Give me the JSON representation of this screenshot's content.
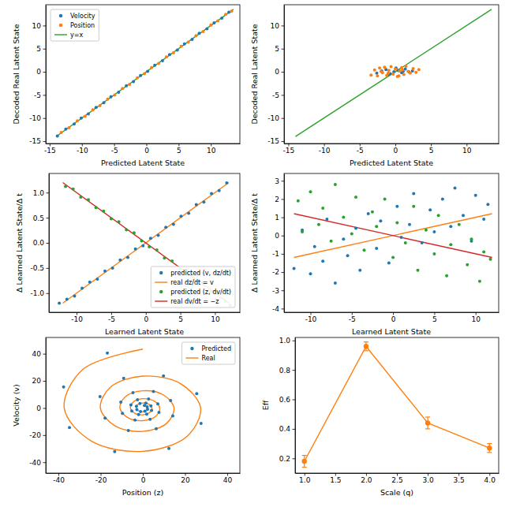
{
  "chart_data": [
    {
      "type": "scatter",
      "x_label": "Predicted Latent State",
      "y_label": "Decoded Real Latent State",
      "xlim": [
        -15.6,
        14.5
      ],
      "ylim": [
        -15.5,
        14.5
      ],
      "xticks": [
        -15,
        -10,
        -5,
        0,
        5,
        10
      ],
      "yticks": [
        -15,
        -10,
        -5,
        0,
        5,
        10
      ],
      "legend": "upper left",
      "series": [
        {
          "name": "Velocity",
          "color": "#1f77b4",
          "marker": "o",
          "x": [
            -13.8,
            -12.5,
            -11.2,
            -10.1,
            -9.0,
            -7.8,
            -6.6,
            -5.5,
            -4.3,
            -3.1,
            -2.0,
            -0.9,
            0.2,
            1.3,
            2.5,
            3.6,
            4.8,
            5.9,
            7.1,
            8.2,
            9.4,
            10.5,
            11.7,
            12.8
          ],
          "values": [
            -13.9,
            -12.4,
            -11.3,
            -10.0,
            -9.1,
            -7.7,
            -6.7,
            -5.4,
            -4.4,
            -3.0,
            -2.1,
            -0.8,
            0.1,
            1.4,
            2.4,
            3.7,
            4.7,
            6.0,
            7.0,
            8.3,
            9.3,
            10.6,
            11.6,
            12.9
          ]
        },
        {
          "name": "Position",
          "color": "#ff7f0e",
          "marker": "o",
          "x": [
            -13.2,
            -12.0,
            -10.7,
            -9.5,
            -8.3,
            -7.2,
            -6.0,
            -4.9,
            -3.7,
            -2.6,
            -1.4,
            -0.3,
            0.8,
            1.9,
            3.1,
            4.2,
            5.4,
            6.5,
            7.7,
            8.8,
            10.0,
            11.1,
            12.3,
            13.2
          ],
          "values": [
            -13.1,
            -12.1,
            -10.6,
            -9.6,
            -8.2,
            -7.3,
            -5.9,
            -5.0,
            -3.6,
            -2.7,
            -1.3,
            -0.4,
            0.9,
            1.8,
            3.2,
            4.1,
            5.5,
            6.4,
            7.8,
            8.7,
            10.1,
            11.0,
            12.4,
            13.1
          ]
        },
        {
          "name": "y=x",
          "type": "line",
          "color": "#2ca02c",
          "line_style": "solid",
          "x": [
            -14,
            13.5
          ],
          "values": [
            -14,
            13.5
          ]
        }
      ]
    },
    {
      "type": "scatter",
      "x_label": "Predicted Latent State",
      "y_label": "Decoded Real Latent State",
      "xlim": [
        -15.6,
        14.5
      ],
      "ylim": [
        -15.5,
        14.5
      ],
      "xticks": [
        -15,
        -10,
        -5,
        0,
        5,
        10
      ],
      "yticks": [
        -15,
        -10,
        -5,
        0,
        5,
        10
      ],
      "series": [
        {
          "color": "#1f77b4",
          "marker": "o",
          "x": [
            -2.6,
            -1.9,
            -1.3,
            -0.7,
            -0.2,
            0.4,
            0.9,
            1.4,
            1.9,
            2.4,
            -1.0,
            0.1,
            1.1
          ],
          "values": [
            -0.3,
            0.2,
            0.5,
            -0.4,
            0.0,
            0.3,
            -0.2,
            0.6,
            0.0,
            0.2,
            -0.6,
            0.8,
            0.1
          ]
        },
        {
          "color": "#ff7f0e",
          "marker": "o",
          "x": [
            -3.4,
            -2.9,
            -2.5,
            -2.2,
            -1.8,
            -1.5,
            -1.2,
            -0.9,
            -0.6,
            -0.3,
            0.0,
            0.3,
            0.6,
            0.9,
            1.2,
            1.5,
            1.8,
            2.1,
            2.5,
            2.9,
            3.3,
            -1.0,
            0.5,
            1.0,
            -2.0
          ],
          "values": [
            -0.7,
            0.4,
            -0.9,
            0.8,
            -0.2,
            1.0,
            -0.8,
            0.3,
            1.1,
            -0.5,
            0.6,
            -1.0,
            0.2,
            0.9,
            -0.6,
            1.2,
            0.1,
            -0.3,
            0.7,
            -0.1,
            0.5,
            -0.3,
            -0.9,
            0.4,
            0.1
          ]
        },
        {
          "type": "line",
          "color": "#2ca02c",
          "line_style": "solid",
          "x": [
            -14,
            13.5
          ],
          "values": [
            -14,
            13.5
          ]
        }
      ]
    },
    {
      "type": "scatter",
      "x_label": "Learned Latent State",
      "y_label": "Δ Learned Latent State/Δ t",
      "xlim": [
        -14,
        13.6
      ],
      "ylim": [
        -1.38,
        1.38
      ],
      "xticks": [
        -10,
        -5,
        0,
        5,
        10
      ],
      "yticks": [
        {
          "value": -1,
          "label": "-1.0"
        },
        -0.5,
        {
          "value": 0,
          "label": "0.0"
        },
        0.5,
        {
          "value": 1,
          "label": "1.0"
        }
      ],
      "legend": "lower right",
      "series": [
        {
          "name": "predicted (v, dz/dt)",
          "color": "#1f77b4",
          "marker": "o",
          "x": [
            -12.5,
            -11.4,
            -10.3,
            -9.2,
            -8.1,
            -7.0,
            -5.9,
            -4.8,
            -3.7,
            -2.6,
            -1.5,
            -0.4,
            0.7,
            1.8,
            2.9,
            4.0,
            5.1,
            6.2,
            7.3,
            8.4,
            9.5,
            10.6,
            11.7
          ],
          "values": [
            -1.2,
            -1.12,
            -1.06,
            -0.9,
            -0.78,
            -0.72,
            -0.56,
            -0.5,
            -0.34,
            -0.29,
            -0.12,
            -0.06,
            0.09,
            0.15,
            0.31,
            0.37,
            0.53,
            0.59,
            0.76,
            0.81,
            0.98,
            1.04,
            1.19
          ]
        },
        {
          "name": "real dz/dt = v",
          "type": "line",
          "color": "#ff7f0e",
          "line_style": "solid",
          "x": [
            -12,
            12
          ],
          "values": [
            -1.2,
            1.2
          ]
        },
        {
          "name": "predicted (z, dv/dt)",
          "color": "#2ca02c",
          "marker": "o",
          "x": [
            -11.6,
            -10.5,
            -9.4,
            -8.3,
            -7.2,
            -6.1,
            -5.0,
            -3.9,
            -2.8,
            -1.7,
            -0.6,
            0.5,
            1.6,
            2.7,
            3.8,
            4.9,
            6.0,
            7.1,
            8.2,
            9.3,
            10.4,
            11.5,
            12.2
          ],
          "values": [
            1.12,
            1.07,
            0.91,
            0.86,
            0.7,
            0.63,
            0.48,
            0.42,
            0.26,
            0.2,
            0.04,
            -0.08,
            -0.14,
            -0.3,
            -0.36,
            -0.52,
            -0.58,
            -0.74,
            -0.79,
            -0.96,
            -1.01,
            -1.16,
            -1.24
          ]
        },
        {
          "name": "real dv/dt = −z",
          "type": "line",
          "color": "#d62728",
          "line_style": "solid",
          "x": [
            -12,
            12
          ],
          "values": [
            1.2,
            -1.2
          ]
        }
      ]
    },
    {
      "type": "scatter",
      "x_label": "Learned Latent State",
      "y_label": "Δ Learned Latent State/Δ t",
      "xlim": [
        -13.2,
        12.8
      ],
      "ylim": [
        -4.2,
        3.4
      ],
      "xticks": [
        -10,
        -5,
        0,
        5,
        10
      ],
      "yticks": [
        -4,
        -3,
        -2,
        -1,
        0,
        1,
        2,
        3
      ],
      "series": [
        {
          "color": "#1f77b4",
          "marker": "o",
          "x": [
            -12,
            -11,
            -10,
            -9.5,
            -8.5,
            -8,
            -7,
            -6,
            -5.5,
            -4.5,
            -4,
            -3,
            -2,
            -1.5,
            -0.5,
            0.5,
            1,
            2,
            2.5,
            3.5,
            4.5,
            5,
            6,
            7,
            7.5,
            8.5,
            9.5,
            10,
            11,
            11.5
          ],
          "values": [
            -1.8,
            0.3,
            -2.1,
            -0.6,
            -1.4,
            0.9,
            -2.6,
            -0.2,
            -1.1,
            0.4,
            -1.9,
            1.2,
            -0.7,
            0.8,
            -1.5,
            1.6,
            -0.1,
            0.6,
            2.3,
            -0.4,
            1.4,
            0.2,
            2.0,
            0.5,
            2.6,
            1.1,
            -0.3,
            2.2,
            0.9,
            1.7
          ]
        },
        {
          "type": "line",
          "color": "#ff7f0e",
          "line_style": "solid",
          "x": [
            -12,
            12
          ],
          "values": [
            -1.2,
            1.2
          ]
        },
        {
          "color": "#2ca02c",
          "marker": "o",
          "x": [
            -11.5,
            -11,
            -10,
            -9,
            -8.5,
            -7.5,
            -7,
            -6,
            -5,
            -4.5,
            -3.5,
            -2.5,
            -2,
            -1,
            0,
            0.5,
            1.5,
            2.5,
            3,
            4,
            5,
            5.5,
            6.5,
            7,
            8,
            9,
            9.5,
            10.5,
            11,
            11.8
          ],
          "values": [
            1.9,
            0.2,
            2.4,
            0.6,
            1.5,
            -0.3,
            2.8,
            1.0,
            0.1,
            2.1,
            -0.8,
            1.3,
            0.5,
            2.0,
            -1.2,
            0.7,
            -0.4,
            1.6,
            -1.9,
            0.3,
            -1.0,
            1.1,
            -2.2,
            -0.5,
            0.6,
            -1.6,
            -0.2,
            -2.5,
            -0.9,
            -1.3
          ]
        },
        {
          "type": "line",
          "color": "#d62728",
          "line_style": "solid",
          "x": [
            -12,
            12
          ],
          "values": [
            1.2,
            -1.2
          ]
        }
      ]
    },
    {
      "type": "scatter",
      "x_label": "Position (z)",
      "y_label": "Velocity (v)",
      "xlim": [
        -46,
        46
      ],
      "ylim": [
        -48,
        52
      ],
      "xticks": [
        -40,
        -20,
        0,
        20,
        40
      ],
      "yticks": [
        -40,
        -20,
        0,
        20,
        40
      ],
      "legend": "upper right",
      "series": [
        {
          "name": "Predicted",
          "color": "#1f77b4",
          "marker": "o",
          "x": [
            0.8,
            2.07,
            2.24,
            1.0,
            -1.08,
            -2.82,
            -3.04,
            -1.36,
            1.47,
            3.84,
            4.15,
            1.85,
            -2.01,
            -5.22,
            -5.64,
            -2.52,
            2.73,
            7.11,
            7.67,
            3.44,
            -3.71,
            -9.66,
            -10.43,
            -4.67,
            5.04,
            13.15,
            14.2,
            6.35,
            -6.86,
            -17.89,
            -20.28,
            -9.08,
            9.8,
            25.55,
            27.6,
            12.36,
            -13.34,
            -34.77,
            -37.55,
            -16.81
          ],
          "values": [
            1.92,
            0.86,
            -0.93,
            -2.42,
            -2.61,
            -1.17,
            1.26,
            3.29,
            3.55,
            1.59,
            -1.72,
            -4.47,
            -4.84,
            -2.16,
            2.34,
            6.09,
            6.58,
            2.95,
            -3.18,
            -8.29,
            -8.94,
            -4.01,
            4.32,
            11.27,
            12.17,
            5.45,
            -5.89,
            -15.33,
            -16.56,
            -7.41,
            8.41,
            21.91,
            23.65,
            10.59,
            -11.44,
            -29.81,
            -32.18,
            -14.41,
            15.57,
            40.55
          ]
        },
        {
          "name": "Real",
          "type": "line",
          "color": "#ff7f0e",
          "line_style": "solid",
          "x": [
            0,
            1.53,
            2.33,
            1.78,
            0,
            -2.08,
            -3.17,
            -2.43,
            0,
            2.83,
            4.32,
            3.29,
            0,
            -3.85,
            -5.87,
            -4.48,
            0,
            5.23,
            7.99,
            6.1,
            0,
            -7.12,
            -10.87,
            -8.3,
            0,
            9.69,
            14.79,
            11.29,
            0,
            -13.17,
            -20.12,
            -15.36,
            0,
            17.92,
            27.38,
            20.91,
            0,
            -24.39,
            -37.25,
            -28.44,
            0
          ],
          "values": [
            2.0,
            1.53,
            0,
            -1.78,
            -2.72,
            -2.08,
            0,
            2.43,
            3.7,
            2.83,
            0,
            -3.29,
            -5.04,
            -3.85,
            0,
            4.48,
            6.85,
            5.23,
            0,
            -6.1,
            -9.32,
            -7.12,
            0,
            8.3,
            12.68,
            9.69,
            0,
            -11.29,
            -17.25,
            -13.17,
            0,
            15.36,
            23.47,
            17.92,
            0,
            -20.91,
            -31.93,
            -24.39,
            0,
            28.44,
            43.45
          ]
        }
      ]
    },
    {
      "type": "line",
      "x_label": "Scale (q)",
      "y_label": "Eff",
      "xlim": [
        0.85,
        4.15
      ],
      "ylim": [
        0.1,
        1.02
      ],
      "xticks": [
        {
          "value": 1,
          "label": "1.0"
        },
        1.5,
        {
          "value": 2,
          "label": "2.0"
        },
        2.5,
        {
          "value": 3,
          "label": "3.0"
        },
        3.5,
        {
          "value": 4,
          "label": "4.0"
        }
      ],
      "yticks": [
        0.2,
        0.4,
        0.6,
        0.8,
        {
          "value": 1,
          "label": "1.0"
        }
      ],
      "series": [
        {
          "color": "#ff7f0e",
          "marker": "o",
          "line_style": "solid",
          "x": [
            1,
            2,
            3,
            4
          ],
          "values": [
            0.18,
            0.96,
            0.44,
            0.27
          ],
          "errors": [
            0.04,
            0.03,
            0.04,
            0.03
          ]
        }
      ]
    }
  ]
}
